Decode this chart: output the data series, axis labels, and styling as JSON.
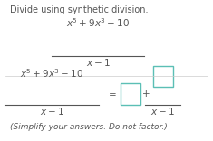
{
  "title_text": "Divide using synthetic division.",
  "bg_color": "#ffffff",
  "text_color": "#555555",
  "box_color": "#5bbfb5",
  "sep_color": "#cccccc",
  "title_fontsize": 7.0,
  "math_fontsize": 7.5,
  "note_fontsize": 6.5
}
